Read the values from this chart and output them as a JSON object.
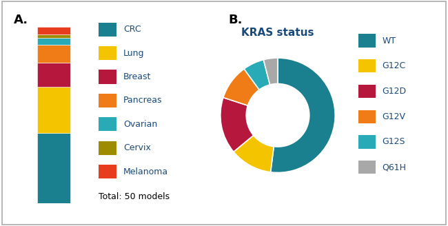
{
  "panel_a_label": "A.",
  "panel_b_label": "B.",
  "bar_categories": [
    "CRC",
    "Lung",
    "Breast",
    "Pancreas",
    "Ovarian",
    "Cervix",
    "Melanoma"
  ],
  "bar_values": [
    20,
    13,
    7,
    5,
    2,
    1,
    2
  ],
  "bar_colors": [
    "#1a7f8e",
    "#f5c400",
    "#b5173d",
    "#f07c18",
    "#29aab7",
    "#9e8c00",
    "#e83c1e"
  ],
  "total": 50,
  "total_text": "Total: 50 models",
  "donut_labels": [
    "WT",
    "G12C",
    "G12D",
    "G12V",
    "G12S",
    "Q61H"
  ],
  "donut_values": [
    26,
    6,
    8,
    5,
    3,
    2
  ],
  "donut_colors": [
    "#1a7f8e",
    "#f5c400",
    "#b5173d",
    "#f07c18",
    "#29aab7",
    "#a8a8a8"
  ],
  "donut_title": "KRAS status",
  "legend_fontsize": 9,
  "title_fontsize": 11,
  "label_fontsize": 13,
  "text_color": "#1a4a7a",
  "background_color": "#ffffff",
  "border_color": "#aaaaaa"
}
